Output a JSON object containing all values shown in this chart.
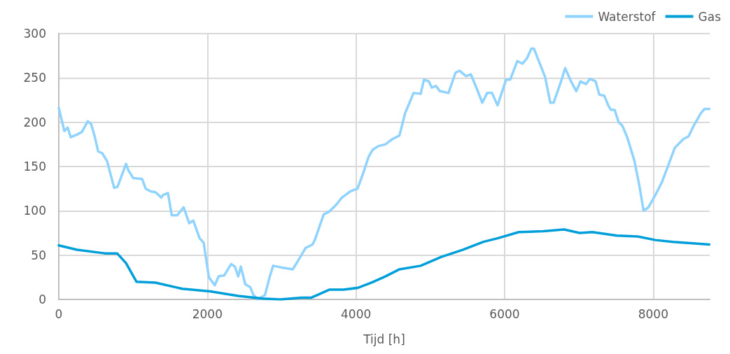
{
  "chart_data": {
    "type": "line",
    "xlabel": "Tijd [h]",
    "xlim": [
      0,
      8760
    ],
    "xticks": [
      0,
      2000,
      4000,
      6000,
      8000
    ],
    "ylim": [
      0,
      300
    ],
    "yticks": [
      0,
      50,
      100,
      150,
      200,
      250,
      300
    ],
    "grid": true,
    "legend": "top right",
    "marker": "none",
    "line_style": "solid",
    "series": [
      {
        "name": "Waterstof",
        "color": "#8fd3fe",
        "x": [
          0,
          75,
          120,
          160,
          245,
          310,
          390,
          435,
          480,
          530,
          585,
          650,
          745,
          790,
          905,
          935,
          1000,
          1120,
          1170,
          1235,
          1300,
          1380,
          1405,
          1470,
          1520,
          1595,
          1680,
          1755,
          1810,
          1895,
          1950,
          2020,
          2100,
          2150,
          2225,
          2320,
          2370,
          2415,
          2450,
          2510,
          2575,
          2620,
          2680,
          2775,
          2840,
          2885,
          3000,
          3150,
          3265,
          3320,
          3415,
          3450,
          3565,
          3640,
          3735,
          3810,
          3925,
          4020,
          4095,
          4170,
          4225,
          4300,
          4395,
          4490,
          4585,
          4660,
          4775,
          4870,
          4915,
          4980,
          5020,
          5075,
          5130,
          5245,
          5340,
          5395,
          5480,
          5545,
          5620,
          5700,
          5765,
          5830,
          5905,
          6020,
          6075,
          6170,
          6240,
          6300,
          6360,
          6395,
          6450,
          6545,
          6615,
          6660,
          6755,
          6815,
          6900,
          6965,
          7020,
          7095,
          7150,
          7225,
          7275,
          7340,
          7395,
          7430,
          7480,
          7535,
          7585,
          7650,
          7745,
          7810,
          7870,
          7935,
          8030,
          8115,
          8210,
          8290,
          8405,
          8475,
          8545,
          8640,
          8690,
          8755
        ],
        "values": [
          216,
          190,
          194,
          183,
          186,
          189,
          201,
          198,
          185,
          167,
          165,
          156,
          126,
          127,
          153,
          146,
          137,
          136,
          125,
          122,
          121,
          115,
          118,
          120,
          95,
          95,
          104,
          86,
          89,
          69,
          64,
          25,
          16,
          26,
          27,
          40,
          37,
          26,
          37,
          17,
          14,
          5,
          0,
          5,
          26,
          38,
          36,
          34,
          50,
          58,
          62,
          68,
          96,
          99,
          107,
          115,
          122,
          125,
          142,
          161,
          169,
          173,
          175,
          181,
          185,
          210,
          233,
          232,
          248,
          246,
          239,
          241,
          235,
          233,
          256,
          258,
          252,
          254,
          239,
          222,
          233,
          233,
          219,
          248,
          248,
          269,
          266,
          272,
          283,
          283,
          271,
          251,
          222,
          222,
          245,
          261,
          245,
          235,
          246,
          243,
          249,
          246,
          231,
          230,
          219,
          214,
          214,
          200,
          196,
          183,
          157,
          130,
          100,
          104,
          118,
          132,
          153,
          171,
          181,
          184,
          196,
          210,
          215,
          215
        ]
      },
      {
        "name": "Gas",
        "color": "#009fda",
        "x": [
          0,
          245,
          620,
          785,
          905,
          1045,
          1300,
          1660,
          2040,
          2415,
          2745,
          2980,
          3265,
          3400,
          3640,
          3830,
          4020,
          4210,
          4395,
          4585,
          4870,
          5150,
          5435,
          5715,
          5905,
          6190,
          6520,
          6800,
          7010,
          7180,
          7510,
          7790,
          8030,
          8265,
          8755
        ],
        "values": [
          61,
          56,
          52,
          52,
          41,
          20,
          19,
          12,
          9,
          4,
          1,
          0,
          2,
          2,
          11,
          11,
          13,
          19,
          26,
          34,
          38,
          48,
          56,
          65,
          69,
          76,
          77,
          79,
          75,
          76,
          72,
          71,
          67,
          65,
          62
        ]
      }
    ]
  }
}
